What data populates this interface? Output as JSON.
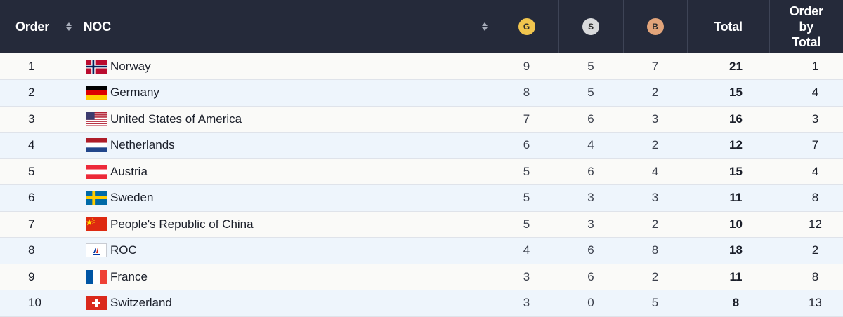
{
  "header": {
    "order": "Order",
    "noc": "NOC",
    "gold_badge": "G",
    "silver_badge": "S",
    "bronze_badge": "B",
    "total": "Total",
    "order_by_total_line1": "Order",
    "order_by_total_line2": "by",
    "order_by_total_line3": "Total"
  },
  "colors": {
    "header_bg": "#252a3a",
    "gold": "#f1c54e",
    "silver": "#d9dadc",
    "bronze": "#e2a47a",
    "row_alt": "#eef5fc"
  },
  "rows": [
    {
      "order": "1",
      "noc": "Norway",
      "gold": "9",
      "silver": "5",
      "bronze": "7",
      "total": "21",
      "order_by_total": "1",
      "flag": "norway-flag"
    },
    {
      "order": "2",
      "noc": "Germany",
      "gold": "8",
      "silver": "5",
      "bronze": "2",
      "total": "15",
      "order_by_total": "4",
      "flag": "germany-flag"
    },
    {
      "order": "3",
      "noc": "United States of America",
      "gold": "7",
      "silver": "6",
      "bronze": "3",
      "total": "16",
      "order_by_total": "3",
      "flag": "usa-flag"
    },
    {
      "order": "4",
      "noc": "Netherlands",
      "gold": "6",
      "silver": "4",
      "bronze": "2",
      "total": "12",
      "order_by_total": "7",
      "flag": "netherlands-flag"
    },
    {
      "order": "5",
      "noc": "Austria",
      "gold": "5",
      "silver": "6",
      "bronze": "4",
      "total": "15",
      "order_by_total": "4",
      "flag": "austria-flag"
    },
    {
      "order": "6",
      "noc": "Sweden",
      "gold": "5",
      "silver": "3",
      "bronze": "3",
      "total": "11",
      "order_by_total": "8",
      "flag": "sweden-flag"
    },
    {
      "order": "7",
      "noc": "People's Republic of China",
      "gold": "5",
      "silver": "3",
      "bronze": "2",
      "total": "10",
      "order_by_total": "12",
      "flag": "china-flag"
    },
    {
      "order": "8",
      "noc": "ROC",
      "gold": "4",
      "silver": "6",
      "bronze": "8",
      "total": "18",
      "order_by_total": "2",
      "flag": "roc-flag"
    },
    {
      "order": "9",
      "noc": "France",
      "gold": "3",
      "silver": "6",
      "bronze": "2",
      "total": "11",
      "order_by_total": "8",
      "flag": "france-flag"
    },
    {
      "order": "10",
      "noc": "Switzerland",
      "gold": "3",
      "silver": "0",
      "bronze": "5",
      "total": "8",
      "order_by_total": "13",
      "flag": "switzerland-flag"
    }
  ]
}
